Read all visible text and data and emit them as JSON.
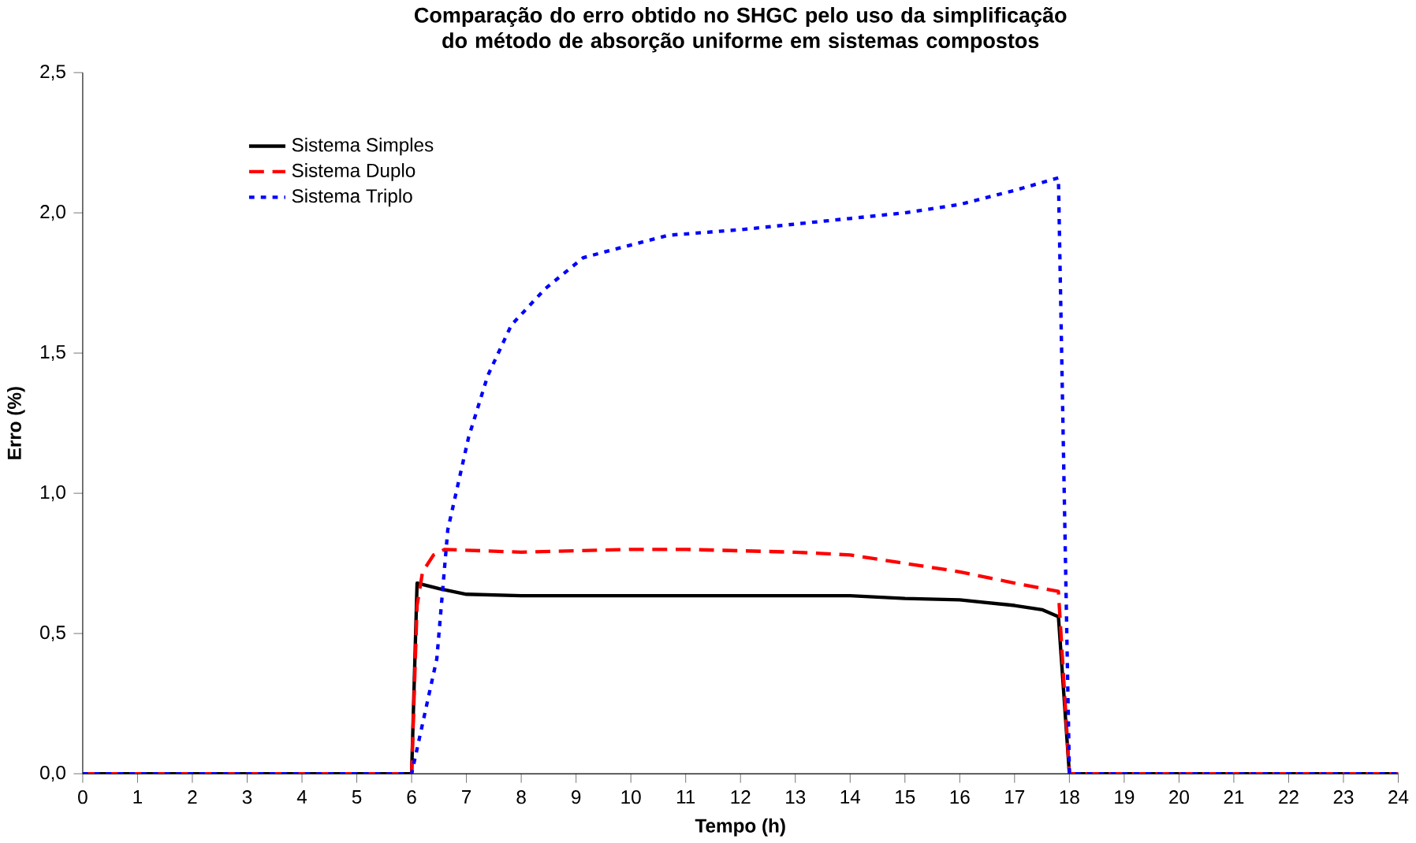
{
  "chart_data": {
    "type": "line",
    "title": "Comparação do erro obtido no SHGC pelo uso da simplificação do método de absorção uniforme em sistemas compostos",
    "xlabel": "Tempo (h)",
    "ylabel": "Erro (%)",
    "xlim": [
      0,
      24
    ],
    "xticks": [
      0,
      1,
      2,
      3,
      4,
      5,
      6,
      7,
      8,
      9,
      10,
      11,
      12,
      13,
      14,
      15,
      16,
      17,
      18,
      19,
      20,
      21,
      22,
      23,
      24
    ],
    "ylim": [
      0,
      2.5
    ],
    "yticks": [
      {
        "value": 0,
        "label": "0,0"
      },
      {
        "value": 0.5,
        "label": "0,5"
      },
      {
        "value": 1,
        "label": "1,0"
      },
      {
        "value": 1.5,
        "label": "1,5"
      },
      {
        "value": 2,
        "label": "2,0"
      },
      {
        "value": 2.5,
        "label": "2,5"
      }
    ],
    "grid": false,
    "legend": "top left",
    "marker": "none",
    "series": [
      {
        "name": "Sistema Simples",
        "color": "#000000",
        "line_style": "solid",
        "x": [
          0,
          6,
          6.1,
          6.5,
          7,
          8,
          10,
          12,
          14,
          15,
          16,
          17,
          17.5,
          17.8,
          18,
          24
        ],
        "values": [
          0,
          0,
          0.68,
          0.66,
          0.64,
          0.635,
          0.635,
          0.635,
          0.635,
          0.625,
          0.62,
          0.6,
          0.585,
          0.56,
          0,
          0
        ]
      },
      {
        "name": "Sistema Duplo",
        "color": "#ff0000",
        "line_style": "dashed",
        "x": [
          0,
          6,
          6.1,
          6.2,
          6.4,
          6.6,
          8,
          10,
          11,
          13,
          14,
          15,
          16,
          17,
          17.8,
          18,
          24
        ],
        "values": [
          0,
          0,
          0.6,
          0.72,
          0.78,
          0.8,
          0.79,
          0.8,
          0.8,
          0.79,
          0.78,
          0.75,
          0.72,
          0.68,
          0.65,
          0,
          0
        ]
      },
      {
        "name": "Sistema Triplo",
        "color": "#0000ff",
        "line_style": "dotted",
        "x": [
          0,
          6,
          6.46,
          6.66,
          7.04,
          7.39,
          7.82,
          8.44,
          9.13,
          9.8,
          10.68,
          12,
          14,
          15,
          16,
          17,
          17.8,
          18,
          24
        ],
        "values": [
          0,
          0,
          0.41,
          0.87,
          1.2,
          1.42,
          1.6,
          1.73,
          1.84,
          1.875,
          1.92,
          1.94,
          1.98,
          2.0,
          2.03,
          2.08,
          2.125,
          0,
          0
        ]
      }
    ]
  }
}
